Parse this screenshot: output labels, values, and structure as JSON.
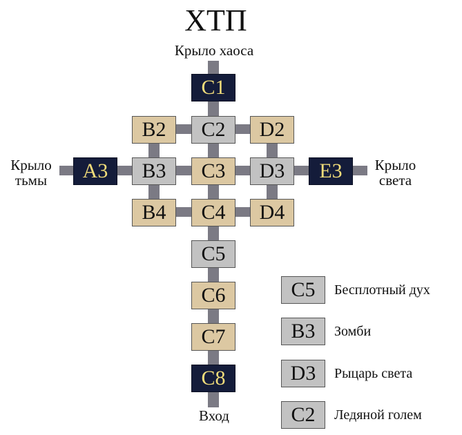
{
  "title": "ХТП",
  "wings": {
    "top": "Крыло хаоса",
    "left": "Крыло\nтьмы",
    "right": "Крыло\nсвета",
    "bottom": "Вход"
  },
  "rooms": [
    {
      "id": "C1",
      "type": "dark"
    },
    {
      "id": "B2",
      "type": "tan"
    },
    {
      "id": "C2",
      "type": "gray"
    },
    {
      "id": "D2",
      "type": "tan"
    },
    {
      "id": "A3",
      "type": "dark"
    },
    {
      "id": "B3",
      "type": "gray"
    },
    {
      "id": "C3",
      "type": "tan"
    },
    {
      "id": "D3",
      "type": "gray"
    },
    {
      "id": "E3",
      "type": "dark"
    },
    {
      "id": "B4",
      "type": "tan"
    },
    {
      "id": "C4",
      "type": "tan"
    },
    {
      "id": "D4",
      "type": "tan"
    },
    {
      "id": "C5",
      "type": "gray"
    },
    {
      "id": "C6",
      "type": "tan"
    },
    {
      "id": "C7",
      "type": "tan"
    },
    {
      "id": "C8",
      "type": "dark"
    }
  ],
  "legend": [
    {
      "code": "C5",
      "text": "Бесплотный дух"
    },
    {
      "code": "B3",
      "text": "Зомби"
    },
    {
      "code": "D3",
      "text": "Рыцарь света"
    },
    {
      "code": "C2",
      "text": "Ледяной голем"
    }
  ],
  "colors": {
    "dark": "#141c3a",
    "tan": "#dcc8a2",
    "gray": "#c2c2c2",
    "connector": "#7b7a84",
    "dark_text": "#f1dc7a"
  }
}
